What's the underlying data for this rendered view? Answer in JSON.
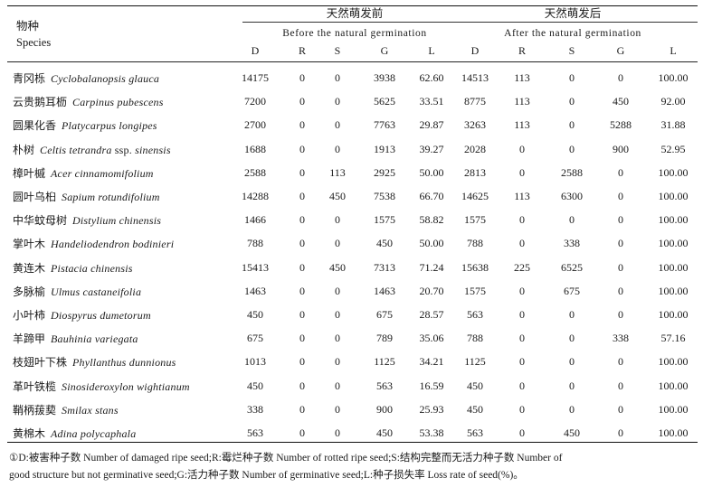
{
  "header": {
    "species_cn": "物种",
    "species_en": "Species",
    "before_cn": "天然萌发前",
    "before_en": "Before the natural germination",
    "after_cn": "天然萌发后",
    "after_en": "After the natural germination",
    "cols_before": [
      "D",
      "R",
      "S",
      "G",
      "L"
    ],
    "cols_after": [
      "D",
      "R",
      "S",
      "G",
      "L"
    ]
  },
  "rows": [
    {
      "cn": "青冈栎",
      "lat": "Cyclobalanopsis glauca",
      "lat_suffix": "",
      "b": [
        "14175",
        "0",
        "0",
        "3938",
        "62.60"
      ],
      "a": [
        "14513",
        "113",
        "0",
        "0",
        "100.00"
      ]
    },
    {
      "cn": "云贵鹅耳枥",
      "lat": "Carpinus pubescens",
      "lat_suffix": "",
      "b": [
        "7200",
        "0",
        "0",
        "5625",
        "33.51"
      ],
      "a": [
        "8775",
        "113",
        "0",
        "450",
        "92.00"
      ]
    },
    {
      "cn": "圆果化香",
      "lat": "Platycarpus longipes",
      "lat_suffix": "",
      "b": [
        "2700",
        "0",
        "0",
        "7763",
        "29.87"
      ],
      "a": [
        "3263",
        "113",
        "0",
        "5288",
        "31.88"
      ]
    },
    {
      "cn": "朴树",
      "lat": "Celtis tetrandra",
      "lat_suffix": " ssp. ",
      "lat_tail": "sinensis",
      "b": [
        "1688",
        "0",
        "0",
        "1913",
        "39.27"
      ],
      "a": [
        "2028",
        "0",
        "0",
        "900",
        "52.95"
      ]
    },
    {
      "cn": "樟叶槭",
      "lat": "Acer cinnamomifolium",
      "lat_suffix": "",
      "b": [
        "2588",
        "0",
        "113",
        "2925",
        "50.00"
      ],
      "a": [
        "2813",
        "0",
        "2588",
        "0",
        "100.00"
      ]
    },
    {
      "cn": "圆叶乌桕",
      "lat": "Sapium rotundifolium",
      "lat_suffix": "",
      "b": [
        "14288",
        "0",
        "450",
        "7538",
        "66.70"
      ],
      "a": [
        "14625",
        "113",
        "6300",
        "0",
        "100.00"
      ]
    },
    {
      "cn": "中华蚊母树",
      "lat": "Distylium chinensis",
      "lat_suffix": "",
      "b": [
        "1466",
        "0",
        "0",
        "1575",
        "58.82"
      ],
      "a": [
        "1575",
        "0",
        "0",
        "0",
        "100.00"
      ]
    },
    {
      "cn": "掌叶木",
      "lat": "Handeliodendron bodinieri",
      "lat_suffix": "",
      "b": [
        "788",
        "0",
        "0",
        "450",
        "50.00"
      ],
      "a": [
        "788",
        "0",
        "338",
        "0",
        "100.00"
      ]
    },
    {
      "cn": "黄连木",
      "lat": "Pistacia chinensis",
      "lat_suffix": "",
      "b": [
        "15413",
        "0",
        "450",
        "7313",
        "71.24"
      ],
      "a": [
        "15638",
        "225",
        "6525",
        "0",
        "100.00"
      ]
    },
    {
      "cn": "多脉榆",
      "lat": "Ulmus castaneifolia",
      "lat_suffix": "",
      "b": [
        "1463",
        "0",
        "0",
        "1463",
        "20.70"
      ],
      "a": [
        "1575",
        "0",
        "675",
        "0",
        "100.00"
      ]
    },
    {
      "cn": "小叶柿",
      "lat": "Diospyrus dumetorum",
      "lat_suffix": "",
      "b": [
        "450",
        "0",
        "0",
        "675",
        "28.57"
      ],
      "a": [
        "563",
        "0",
        "0",
        "0",
        "100.00"
      ]
    },
    {
      "cn": "羊蹄甲",
      "lat": "Bauhinia variegata",
      "lat_suffix": "",
      "b": [
        "675",
        "0",
        "0",
        "789",
        "35.06"
      ],
      "a": [
        "788",
        "0",
        "0",
        "338",
        "57.16"
      ]
    },
    {
      "cn": "枝翅叶下株",
      "lat": "Phyllanthus dunnionus",
      "lat_suffix": "",
      "b": [
        "1013",
        "0",
        "0",
        "1125",
        "34.21"
      ],
      "a": [
        "1125",
        "0",
        "0",
        "0",
        "100.00"
      ]
    },
    {
      "cn": "革叶铁榄",
      "lat": "Sinosideroxylon wightianum",
      "lat_suffix": "",
      "b": [
        "450",
        "0",
        "0",
        "563",
        "16.59"
      ],
      "a": [
        "450",
        "0",
        "0",
        "0",
        "100.00"
      ]
    },
    {
      "cn": "鞘柄菝葜",
      "lat": "Smilax stans",
      "lat_suffix": "",
      "b": [
        "338",
        "0",
        "0",
        "900",
        "25.93"
      ],
      "a": [
        "450",
        "0",
        "0",
        "0",
        "100.00"
      ]
    },
    {
      "cn": "黄棉木",
      "lat": "Adina polycaphala",
      "lat_suffix": "",
      "b": [
        "563",
        "0",
        "0",
        "450",
        "53.38"
      ],
      "a": [
        "563",
        "0",
        "450",
        "0",
        "100.00"
      ]
    }
  ],
  "footnote": {
    "mark": "①",
    "line1": "D:被害种子数 Number of damaged ripe seed;R:霉烂种子数 Number of rotted ripe seed;S:结构完整而无活力种子数 Number of",
    "line2": "good structure but not germinative seed;G:活力种子数 Number of germinative seed;L:种子损失率 Loss rate of seed(%)。"
  }
}
